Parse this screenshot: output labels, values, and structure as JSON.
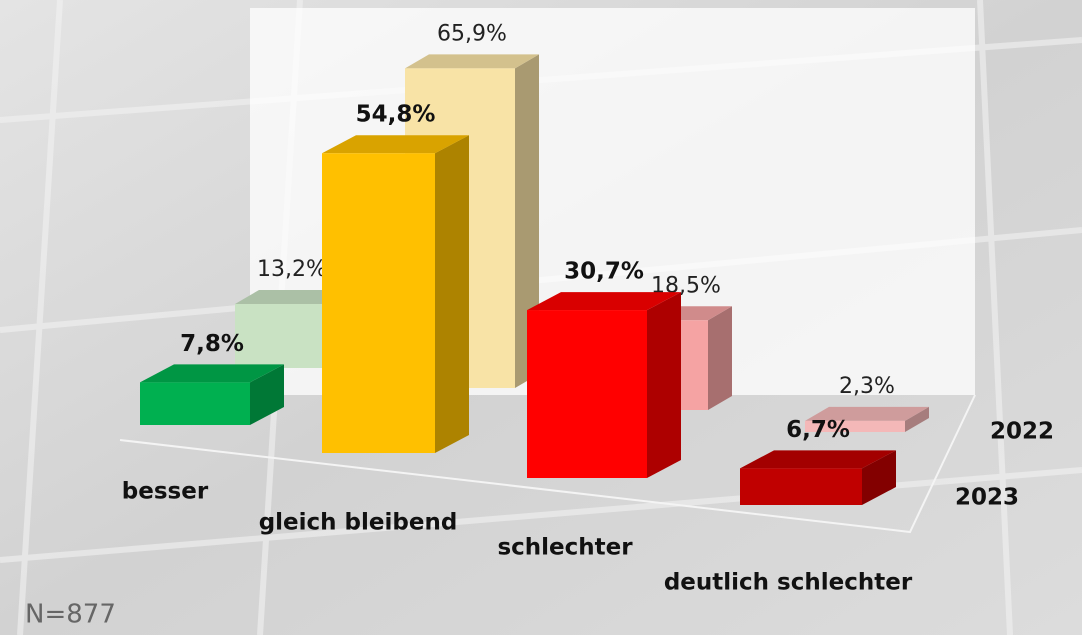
{
  "chart_data": {
    "type": "bar3d",
    "categories": [
      "besser",
      "gleich bleibend",
      "schlechter",
      "deutlich schlechter"
    ],
    "series": [
      {
        "name": "2022",
        "colors": [
          "#c9e2c3",
          "#f8e3a6",
          "#f5a3a3",
          "#f4b8b8"
        ],
        "values": [
          13.2,
          65.9,
          18.5,
          2.3
        ],
        "value_labels": [
          "13,2%",
          "65,9%",
          "18,5%",
          "2,3%"
        ]
      },
      {
        "name": "2023",
        "colors": [
          "#00b050",
          "#ffc000",
          "#ff0000",
          "#c00000"
        ],
        "values": [
          7.8,
          54.8,
          30.7,
          6.7
        ],
        "value_labels": [
          "7,8%",
          "54,8%",
          "30,7%",
          "6,7%"
        ]
      }
    ],
    "note": "N=877"
  }
}
